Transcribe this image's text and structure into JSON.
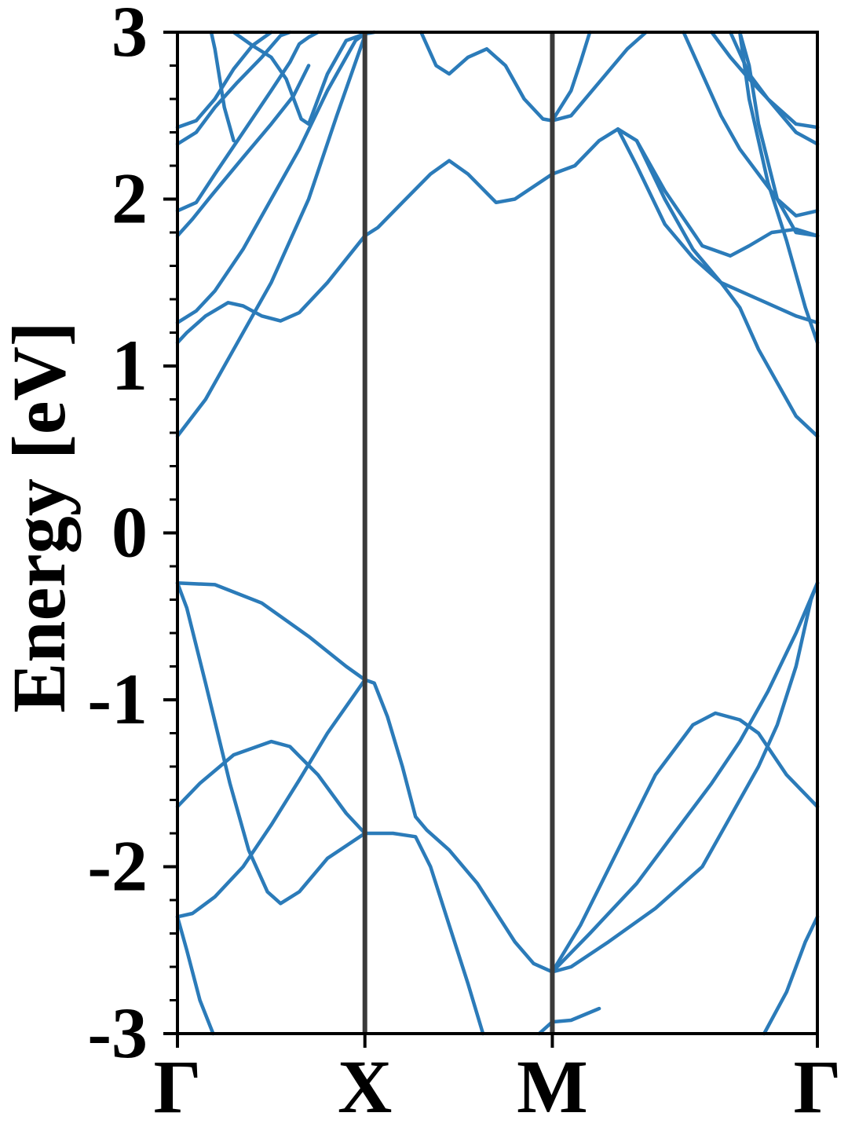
{
  "chart_data": {
    "type": "line",
    "title": "",
    "xlabel": "",
    "ylabel": "Energy [eV]",
    "ylim": [
      -3,
      3
    ],
    "yticks": [
      "3",
      "2",
      "1",
      "0",
      "-1",
      "-2",
      "-3"
    ],
    "ytick_values": [
      3,
      2,
      1,
      0,
      -1,
      -2,
      -3
    ],
    "kpoints": [
      {
        "label": "Γ",
        "k": 0
      },
      {
        "label": "X",
        "k": 1
      },
      {
        "label": "M",
        "k": 2
      },
      {
        "label": "Γ",
        "k": 3.414
      }
    ],
    "grid": false,
    "line_color": "#2b7bb9",
    "kline_color": "#3a3a3a",
    "series": [
      {
        "values": [
          [
            0,
            -2.3
          ],
          [
            0.05,
            -2.5
          ],
          [
            0.12,
            -2.8
          ],
          [
            0.19,
            -3.0
          ]
        ]
      },
      {
        "values": [
          [
            0,
            -2.3
          ],
          [
            0.08,
            -2.28
          ],
          [
            0.2,
            -2.18
          ],
          [
            0.35,
            -2.0
          ],
          [
            0.5,
            -1.75
          ],
          [
            0.65,
            -1.48
          ],
          [
            0.8,
            -1.2
          ],
          [
            1.0,
            -0.88
          ],
          [
            1.05,
            -0.9
          ],
          [
            1.12,
            -1.1
          ],
          [
            1.2,
            -1.4
          ],
          [
            1.27,
            -1.7
          ],
          [
            1.33,
            -1.78
          ],
          [
            1.45,
            -1.9
          ],
          [
            1.6,
            -2.1
          ],
          [
            1.8,
            -2.45
          ],
          [
            1.9,
            -2.58
          ],
          [
            2.0,
            -2.63
          ],
          [
            2.1,
            -2.6
          ],
          [
            2.3,
            -2.45
          ],
          [
            2.55,
            -2.25
          ],
          [
            2.8,
            -2.0
          ],
          [
            2.95,
            -1.7
          ],
          [
            3.1,
            -1.4
          ],
          [
            3.2,
            -1.15
          ],
          [
            3.3,
            -0.8
          ],
          [
            3.38,
            -0.4
          ],
          [
            3.414,
            -0.3
          ]
        ]
      },
      {
        "values": [
          [
            0,
            -0.3
          ],
          [
            0.2,
            -0.31
          ],
          [
            0.45,
            -0.42
          ],
          [
            0.7,
            -0.62
          ],
          [
            0.9,
            -0.8
          ],
          [
            1.0,
            -0.88
          ]
        ]
      },
      {
        "values": [
          [
            0,
            -0.3
          ],
          [
            0.05,
            -0.45
          ],
          [
            0.15,
            -0.9
          ],
          [
            0.28,
            -1.5
          ],
          [
            0.38,
            -1.9
          ],
          [
            0.48,
            -2.15
          ],
          [
            0.55,
            -2.22
          ],
          [
            0.65,
            -2.15
          ],
          [
            0.8,
            -1.95
          ],
          [
            1.0,
            -1.8
          ],
          [
            1.15,
            -1.8
          ],
          [
            1.27,
            -1.82
          ],
          [
            1.35,
            -2.0
          ],
          [
            1.45,
            -2.35
          ],
          [
            1.55,
            -2.7
          ],
          [
            1.63,
            -3.0
          ]
        ]
      },
      {
        "values": [
          [
            0,
            -1.64
          ],
          [
            0.12,
            -1.5
          ],
          [
            0.3,
            -1.33
          ],
          [
            0.5,
            -1.25
          ],
          [
            0.6,
            -1.28
          ],
          [
            0.75,
            -1.45
          ],
          [
            0.9,
            -1.68
          ],
          [
            1.0,
            -1.8
          ]
        ]
      },
      {
        "values": [
          [
            2.0,
            -2.63
          ],
          [
            2.15,
            -2.35
          ],
          [
            2.35,
            -1.9
          ],
          [
            2.55,
            -1.45
          ],
          [
            2.75,
            -1.15
          ],
          [
            2.87,
            -1.08
          ],
          [
            3.0,
            -1.12
          ],
          [
            3.1,
            -1.2
          ],
          [
            3.25,
            -1.45
          ],
          [
            3.414,
            -1.64
          ]
        ]
      },
      {
        "values": [
          [
            2.0,
            -2.63
          ],
          [
            2.2,
            -2.4
          ],
          [
            2.45,
            -2.1
          ],
          [
            2.65,
            -1.8
          ],
          [
            2.85,
            -1.5
          ],
          [
            3.0,
            -1.25
          ],
          [
            3.15,
            -0.95
          ],
          [
            3.3,
            -0.6
          ],
          [
            3.414,
            -0.3
          ]
        ]
      },
      {
        "values": [
          [
            1.93,
            -3.0
          ],
          [
            2.0,
            -2.93
          ],
          [
            2.1,
            -2.92
          ],
          [
            2.25,
            -2.85
          ]
        ]
      },
      {
        "values": [
          [
            3.13,
            -3.0
          ],
          [
            3.25,
            -2.75
          ],
          [
            3.35,
            -2.45
          ],
          [
            3.414,
            -2.3
          ]
        ]
      },
      {
        "values": [
          [
            0,
            0.58
          ],
          [
            0.15,
            0.8
          ],
          [
            0.3,
            1.1
          ],
          [
            0.5,
            1.5
          ],
          [
            0.7,
            2.0
          ],
          [
            0.85,
            2.5
          ],
          [
            1.0,
            2.98
          ]
        ]
      },
      {
        "values": [
          [
            0,
            1.14
          ],
          [
            0.05,
            1.2
          ],
          [
            0.15,
            1.3
          ],
          [
            0.27,
            1.38
          ],
          [
            0.35,
            1.36
          ],
          [
            0.45,
            1.3
          ],
          [
            0.55,
            1.27
          ],
          [
            0.65,
            1.32
          ],
          [
            0.8,
            1.5
          ],
          [
            1.0,
            1.78
          ],
          [
            1.07,
            1.83
          ],
          [
            1.2,
            1.98
          ],
          [
            1.35,
            2.15
          ],
          [
            1.45,
            2.23
          ],
          [
            1.55,
            2.15
          ],
          [
            1.7,
            1.98
          ],
          [
            1.8,
            2.0
          ],
          [
            2.0,
            2.15
          ],
          [
            2.12,
            2.2
          ],
          [
            2.25,
            2.35
          ],
          [
            2.35,
            2.42
          ],
          [
            2.45,
            2.35
          ],
          [
            2.6,
            2.05
          ],
          [
            2.8,
            1.72
          ],
          [
            2.95,
            1.66
          ],
          [
            3.05,
            1.72
          ],
          [
            3.17,
            1.8
          ],
          [
            3.3,
            1.82
          ],
          [
            3.414,
            1.78
          ]
        ]
      },
      {
        "values": [
          [
            0,
            1.26
          ],
          [
            0.1,
            1.33
          ],
          [
            0.2,
            1.45
          ],
          [
            0.35,
            1.7
          ],
          [
            0.5,
            2.0
          ],
          [
            0.65,
            2.3
          ],
          [
            0.8,
            2.65
          ],
          [
            0.95,
            2.95
          ],
          [
            1.0,
            2.99
          ]
        ]
      },
      {
        "values": [
          [
            0,
            1.78
          ],
          [
            0.08,
            1.88
          ],
          [
            0.18,
            2.02
          ],
          [
            0.35,
            2.25
          ],
          [
            0.5,
            2.45
          ],
          [
            0.62,
            2.62
          ],
          [
            0.7,
            2.8
          ]
        ]
      },
      {
        "values": [
          [
            0,
            1.93
          ],
          [
            0.1,
            1.98
          ],
          [
            0.2,
            2.15
          ],
          [
            0.35,
            2.4
          ],
          [
            0.5,
            2.65
          ],
          [
            0.6,
            2.82
          ],
          [
            0.65,
            2.93
          ],
          [
            0.7,
            2.97
          ],
          [
            0.75,
            3.0
          ]
        ]
      },
      {
        "values": [
          [
            0,
            2.33
          ],
          [
            0.1,
            2.4
          ],
          [
            0.2,
            2.55
          ],
          [
            0.32,
            2.7
          ],
          [
            0.45,
            2.85
          ],
          [
            0.55,
            2.98
          ],
          [
            0.6,
            3.0
          ]
        ]
      },
      {
        "values": [
          [
            0,
            2.43
          ],
          [
            0.1,
            2.47
          ],
          [
            0.2,
            2.6
          ],
          [
            0.3,
            2.78
          ],
          [
            0.4,
            2.92
          ],
          [
            0.5,
            3.0
          ]
        ]
      },
      {
        "values": [
          [
            0.3,
            3.0
          ],
          [
            0.4,
            2.92
          ],
          [
            0.5,
            2.85
          ],
          [
            0.58,
            2.72
          ],
          [
            0.66,
            2.48
          ],
          [
            0.7,
            2.45
          ],
          [
            0.8,
            2.75
          ],
          [
            0.9,
            2.95
          ],
          [
            1.0,
            2.99
          ]
        ]
      },
      {
        "values": [
          [
            0.3,
            2.35
          ],
          [
            0.25,
            2.55
          ],
          [
            0.2,
            2.9
          ],
          [
            0.18,
            3.0
          ]
        ]
      },
      {
        "values": [
          [
            1.0,
            2.99
          ],
          [
            1.05,
            3.0
          ]
        ]
      },
      {
        "values": [
          [
            1.3,
            3.0
          ],
          [
            1.38,
            2.8
          ],
          [
            1.45,
            2.75
          ],
          [
            1.55,
            2.85
          ],
          [
            1.65,
            2.9
          ],
          [
            1.75,
            2.8
          ],
          [
            1.85,
            2.6
          ],
          [
            1.95,
            2.48
          ],
          [
            2.0,
            2.47
          ],
          [
            2.1,
            2.5
          ],
          [
            2.25,
            2.7
          ],
          [
            2.4,
            2.9
          ],
          [
            2.5,
            3.0
          ]
        ]
      },
      {
        "values": [
          [
            2.0,
            2.47
          ],
          [
            2.1,
            2.65
          ],
          [
            2.15,
            2.82
          ],
          [
            2.2,
            3.0
          ]
        ]
      },
      {
        "values": [
          [
            2.7,
            3.0
          ],
          [
            2.8,
            2.75
          ],
          [
            2.9,
            2.5
          ],
          [
            3.0,
            2.3
          ],
          [
            3.1,
            2.15
          ],
          [
            3.2,
            2.0
          ],
          [
            3.3,
            1.9
          ],
          [
            3.414,
            1.93
          ]
        ]
      },
      {
        "values": [
          [
            2.85,
            3.0
          ],
          [
            2.95,
            2.85
          ],
          [
            3.05,
            2.72
          ],
          [
            3.15,
            2.6
          ],
          [
            3.3,
            2.45
          ],
          [
            3.414,
            2.43
          ]
        ]
      },
      {
        "values": [
          [
            2.95,
            3.0
          ],
          [
            3.05,
            2.75
          ],
          [
            3.15,
            2.6
          ],
          [
            3.3,
            2.4
          ],
          [
            3.414,
            2.33
          ]
        ]
      },
      {
        "values": [
          [
            3.0,
            3.0
          ],
          [
            3.05,
            2.6
          ],
          [
            3.15,
            2.1
          ],
          [
            3.25,
            1.75
          ],
          [
            3.35,
            1.35
          ],
          [
            3.414,
            1.14
          ]
        ]
      },
      {
        "values": [
          [
            3.0,
            3.0
          ],
          [
            3.05,
            2.8
          ],
          [
            3.1,
            2.45
          ],
          [
            3.2,
            2.0
          ],
          [
            3.3,
            1.8
          ],
          [
            3.414,
            1.78
          ]
        ]
      },
      {
        "values": [
          [
            2.35,
            2.42
          ],
          [
            2.45,
            2.2
          ],
          [
            2.6,
            1.85
          ],
          [
            2.75,
            1.65
          ],
          [
            2.9,
            1.5
          ],
          [
            3.0,
            1.35
          ],
          [
            3.1,
            1.1
          ],
          [
            3.2,
            0.9
          ],
          [
            3.3,
            0.7
          ],
          [
            3.414,
            0.58
          ]
        ]
      },
      {
        "values": [
          [
            2.45,
            2.35
          ],
          [
            2.6,
            2.0
          ],
          [
            2.75,
            1.7
          ],
          [
            2.9,
            1.5
          ],
          [
            3.1,
            1.4
          ],
          [
            3.3,
            1.3
          ],
          [
            3.414,
            1.26
          ]
        ]
      }
    ]
  }
}
